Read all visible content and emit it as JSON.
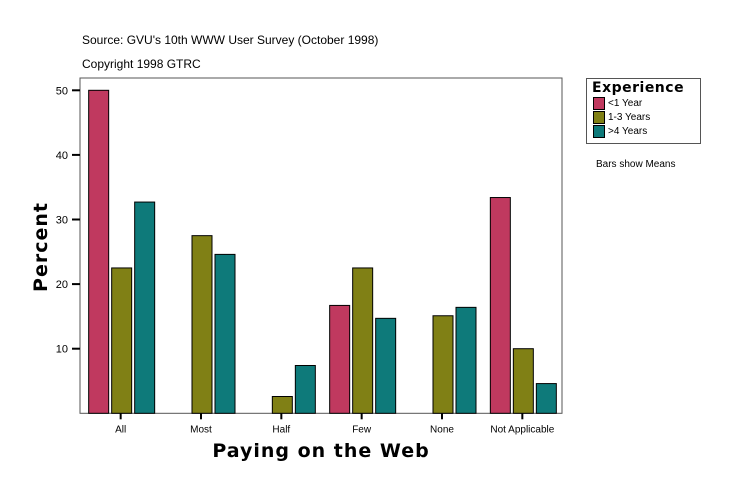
{
  "header": {
    "source": "Source: GVU's 10th WWW User Survey (October 1998)",
    "copyright": "Copyright 1998 GTRC"
  },
  "note": "Bars show Means",
  "chart_data": {
    "type": "bar",
    "xlabel": "Paying on the Web",
    "ylabel": "Percent",
    "categories": [
      "All",
      "Most",
      "Half",
      "Few",
      "None",
      "Not Applicable"
    ],
    "yticks": [
      10,
      20,
      30,
      40,
      50
    ],
    "ylim": [
      0,
      52
    ],
    "grid": false,
    "legend_title": "Experience",
    "legend_placement": "right",
    "series": [
      {
        "name": "<1 Year",
        "color": "#C0395F",
        "values": [
          50,
          0,
          0,
          16.7,
          0,
          33.4
        ]
      },
      {
        "name": "1-3 Years",
        "color": "#808015",
        "values": [
          22.5,
          27.5,
          2.6,
          22.5,
          15.1,
          10
        ]
      },
      {
        "name": ">4 Years",
        "color": "#0E7A7A",
        "values": [
          32.7,
          24.6,
          7.4,
          14.7,
          16.4,
          4.6
        ]
      }
    ]
  }
}
